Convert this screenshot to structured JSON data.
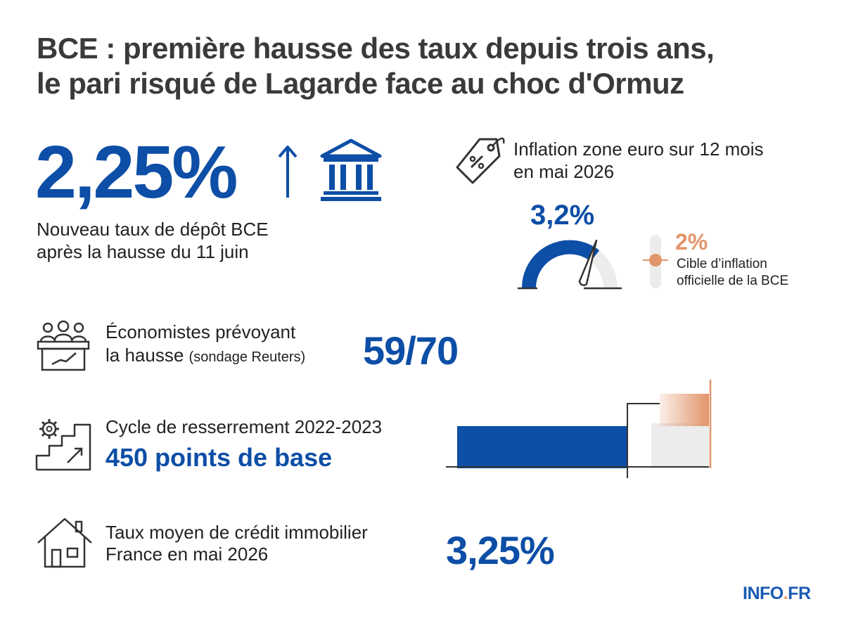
{
  "title": {
    "line1": "BCE : première hausse des taux depuis trois ans,",
    "line2": "le pari risqué de Lagarde face au choc d'Ormuz"
  },
  "deposit_rate": {
    "value": "2,25%",
    "caption_line1": "Nouveau taux de dépôt BCE",
    "caption_line2": "après la hausse du 11 juin",
    "icons": [
      "arrow-up-icon",
      "bank-icon"
    ]
  },
  "inflation": {
    "label_line1": "Inflation zone euro sur 12 mois",
    "label_line2": "en mai 2026",
    "value": "3,2%",
    "target_value": "2%",
    "target_caption_line1": "Cible d’inflation",
    "target_caption_line2": "officielle de la BCE",
    "icons": [
      "price-tag-icon",
      "gauge-icon"
    ]
  },
  "economists": {
    "label_line1": "Économistes prévoyant",
    "label_line2_main": "la hausse",
    "label_line2_small": "(sondage Reuters)",
    "value": "59/70",
    "icon": "meeting-icon"
  },
  "cycle": {
    "label": "Cycle de resserrement 2022-2023",
    "value": "450 points de base",
    "icon": "gear-stairs-icon"
  },
  "mortgage": {
    "label_line1": "Taux moyen de crédit immobilier",
    "label_line2": "France en mai 2026",
    "value": "3,25%",
    "icon": "house-icon"
  },
  "logo": {
    "main": "INFO",
    "dot": ".",
    "suffix": "FR"
  },
  "colors": {
    "blue": "#0d4ea6",
    "orange": "#e2956a",
    "grey": "#ececec",
    "text": "#222222"
  }
}
